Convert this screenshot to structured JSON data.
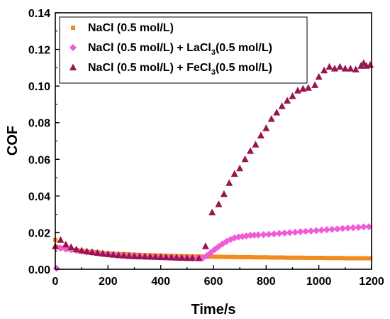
{
  "chart_data": {
    "type": "scatter",
    "xlabel": "Time/s",
    "ylabel": "COF",
    "xlim": [
      0,
      1200
    ],
    "ylim": [
      0,
      0.14
    ],
    "xticks": [
      "0",
      "200",
      "400",
      "600",
      "800",
      "1000",
      "1200"
    ],
    "yticks": [
      "0.00",
      "0.02",
      "0.04",
      "0.06",
      "0.08",
      "0.10",
      "0.12",
      "0.14"
    ],
    "grid": false,
    "legend_position": "top-left",
    "legend": [
      {
        "pre": "NaCl (0.5 mol/L)",
        "sub": "",
        "post": ""
      },
      {
        "pre": "NaCl (0.5 mol/L) + LaCl",
        "sub": "3",
        "post": "(0.5 mol/L)"
      },
      {
        "pre": "NaCl (0.5 mol/L) + FeCl",
        "sub": "3",
        "post": "(0.5 mol/L)"
      }
    ],
    "series": [
      {
        "name": "NaCl (0.5 mol/L)",
        "marker": "square",
        "color": "#F28A1E",
        "points": [
          [
            0,
            0.016
          ],
          [
            10,
            0.012
          ],
          [
            25,
            0.0115
          ],
          [
            40,
            0.011
          ],
          [
            55,
            0.0108
          ],
          [
            70,
            0.0106
          ],
          [
            85,
            0.0104
          ],
          [
            100,
            0.0101
          ],
          [
            115,
            0.0099
          ],
          [
            130,
            0.0096
          ],
          [
            145,
            0.0094
          ],
          [
            160,
            0.0092
          ],
          [
            175,
            0.009
          ],
          [
            190,
            0.0088
          ],
          [
            205,
            0.0086
          ],
          [
            220,
            0.0085
          ],
          [
            235,
            0.0084
          ],
          [
            250,
            0.0083
          ],
          [
            265,
            0.0082
          ],
          [
            280,
            0.0081
          ],
          [
            295,
            0.008
          ],
          [
            310,
            0.0079
          ],
          [
            325,
            0.0078
          ],
          [
            340,
            0.0077
          ],
          [
            355,
            0.0076
          ],
          [
            370,
            0.0076
          ],
          [
            385,
            0.0075
          ],
          [
            400,
            0.0075
          ],
          [
            415,
            0.0074
          ],
          [
            430,
            0.0073
          ],
          [
            445,
            0.0073
          ],
          [
            460,
            0.0072
          ],
          [
            475,
            0.0072
          ],
          [
            490,
            0.0071
          ],
          [
            505,
            0.0071
          ],
          [
            520,
            0.007
          ],
          [
            535,
            0.007
          ],
          [
            550,
            0.007
          ],
          [
            565,
            0.0069
          ],
          [
            580,
            0.0069
          ],
          [
            595,
            0.0069
          ],
          [
            610,
            0.0068
          ],
          [
            625,
            0.0068
          ],
          [
            640,
            0.0068
          ],
          [
            655,
            0.0067
          ],
          [
            670,
            0.0067
          ],
          [
            685,
            0.0067
          ],
          [
            700,
            0.0066
          ],
          [
            715,
            0.0066
          ],
          [
            730,
            0.0066
          ],
          [
            745,
            0.0066
          ],
          [
            760,
            0.0065
          ],
          [
            775,
            0.0065
          ],
          [
            790,
            0.0065
          ],
          [
            805,
            0.0065
          ],
          [
            820,
            0.0064
          ],
          [
            835,
            0.0064
          ],
          [
            850,
            0.0064
          ],
          [
            865,
            0.0064
          ],
          [
            880,
            0.0063
          ],
          [
            895,
            0.0063
          ],
          [
            910,
            0.0063
          ],
          [
            925,
            0.0063
          ],
          [
            940,
            0.0063
          ],
          [
            955,
            0.0062
          ],
          [
            970,
            0.0062
          ],
          [
            985,
            0.0062
          ],
          [
            1000,
            0.0062
          ],
          [
            1015,
            0.0062
          ],
          [
            1030,
            0.0061
          ],
          [
            1045,
            0.0061
          ],
          [
            1060,
            0.0061
          ],
          [
            1075,
            0.0061
          ],
          [
            1090,
            0.0061
          ],
          [
            1105,
            0.006
          ],
          [
            1120,
            0.006
          ],
          [
            1135,
            0.006
          ],
          [
            1150,
            0.006
          ],
          [
            1165,
            0.006
          ],
          [
            1180,
            0.006
          ],
          [
            1195,
            0.006
          ]
        ]
      },
      {
        "name": "NaCl (0.5 mol/L) + LaCl3(0.5 mol/L)",
        "marker": "diamond",
        "color": "#F25BD7",
        "points": [
          [
            5,
            0.0005
          ],
          [
            20,
            0.0115
          ],
          [
            40,
            0.011
          ],
          [
            60,
            0.0107
          ],
          [
            80,
            0.0103
          ],
          [
            100,
            0.0099
          ],
          [
            120,
            0.0095
          ],
          [
            140,
            0.0091
          ],
          [
            160,
            0.0088
          ],
          [
            180,
            0.0085
          ],
          [
            200,
            0.0082
          ],
          [
            220,
            0.008
          ],
          [
            240,
            0.0078
          ],
          [
            260,
            0.0076
          ],
          [
            280,
            0.0074
          ],
          [
            300,
            0.0072
          ],
          [
            320,
            0.0071
          ],
          [
            340,
            0.007
          ],
          [
            360,
            0.0069
          ],
          [
            380,
            0.0068
          ],
          [
            400,
            0.0067
          ],
          [
            420,
            0.0066
          ],
          [
            440,
            0.0065
          ],
          [
            460,
            0.0064
          ],
          [
            480,
            0.0063
          ],
          [
            500,
            0.0062
          ],
          [
            520,
            0.0061
          ],
          [
            540,
            0.006
          ],
          [
            560,
            0.0062
          ],
          [
            575,
            0.0074
          ],
          [
            590,
            0.0091
          ],
          [
            605,
            0.0108
          ],
          [
            620,
            0.0124
          ],
          [
            635,
            0.0139
          ],
          [
            650,
            0.0152
          ],
          [
            665,
            0.0163
          ],
          [
            680,
            0.0171
          ],
          [
            695,
            0.0176
          ],
          [
            710,
            0.0179
          ],
          [
            725,
            0.0182
          ],
          [
            740,
            0.0185
          ],
          [
            755,
            0.0186
          ],
          [
            770,
            0.0187
          ],
          [
            790,
            0.0189
          ],
          [
            810,
            0.0191
          ],
          [
            830,
            0.0193
          ],
          [
            850,
            0.0196
          ],
          [
            870,
            0.0198
          ],
          [
            890,
            0.02
          ],
          [
            910,
            0.0202
          ],
          [
            930,
            0.0205
          ],
          [
            950,
            0.0207
          ],
          [
            970,
            0.0209
          ],
          [
            990,
            0.0211
          ],
          [
            1010,
            0.0214
          ],
          [
            1030,
            0.0216
          ],
          [
            1050,
            0.0218
          ],
          [
            1070,
            0.022
          ],
          [
            1090,
            0.0223
          ],
          [
            1110,
            0.0225
          ],
          [
            1130,
            0.0227
          ],
          [
            1150,
            0.0229
          ],
          [
            1170,
            0.0231
          ],
          [
            1190,
            0.0232
          ]
        ]
      },
      {
        "name": "NaCl (0.5 mol/L) + FeCl3(0.5 mol/L)",
        "marker": "triangle",
        "color": "#98154F",
        "points": [
          [
            0,
            0.0125
          ],
          [
            20,
            0.016
          ],
          [
            40,
            0.0135
          ],
          [
            60,
            0.012
          ],
          [
            80,
            0.0108
          ],
          [
            100,
            0.0102
          ],
          [
            120,
            0.0097
          ],
          [
            140,
            0.0093
          ],
          [
            160,
            0.0089
          ],
          [
            180,
            0.0085
          ],
          [
            200,
            0.0082
          ],
          [
            220,
            0.0079
          ],
          [
            240,
            0.0076
          ],
          [
            260,
            0.0074
          ],
          [
            280,
            0.0072
          ],
          [
            300,
            0.0071
          ],
          [
            320,
            0.007
          ],
          [
            340,
            0.0069
          ],
          [
            360,
            0.0068
          ],
          [
            380,
            0.0067
          ],
          [
            400,
            0.0066
          ],
          [
            420,
            0.0065
          ],
          [
            440,
            0.0064
          ],
          [
            460,
            0.0063
          ],
          [
            480,
            0.0062
          ],
          [
            500,
            0.0061
          ],
          [
            520,
            0.0061
          ],
          [
            545,
            0.006
          ],
          [
            570,
            0.0125
          ],
          [
            595,
            0.031
          ],
          [
            620,
            0.0355
          ],
          [
            640,
            0.041
          ],
          [
            660,
            0.047
          ],
          [
            680,
            0.052
          ],
          [
            700,
            0.055
          ],
          [
            720,
            0.06
          ],
          [
            740,
            0.0645
          ],
          [
            760,
            0.068
          ],
          [
            780,
            0.073
          ],
          [
            800,
            0.077
          ],
          [
            820,
            0.082
          ],
          [
            840,
            0.0855
          ],
          [
            860,
            0.089
          ],
          [
            880,
            0.092
          ],
          [
            900,
            0.0945
          ],
          [
            920,
            0.0975
          ],
          [
            940,
            0.0985
          ],
          [
            960,
            0.099
          ],
          [
            985,
            0.1005
          ],
          [
            1000,
            0.105
          ],
          [
            1020,
            0.1085
          ],
          [
            1040,
            0.1105
          ],
          [
            1060,
            0.1095
          ],
          [
            1080,
            0.1105
          ],
          [
            1100,
            0.1095
          ],
          [
            1120,
            0.1095
          ],
          [
            1140,
            0.109
          ],
          [
            1160,
            0.111
          ],
          [
            1170,
            0.1125
          ],
          [
            1180,
            0.111
          ],
          [
            1195,
            0.1115
          ]
        ]
      }
    ]
  }
}
